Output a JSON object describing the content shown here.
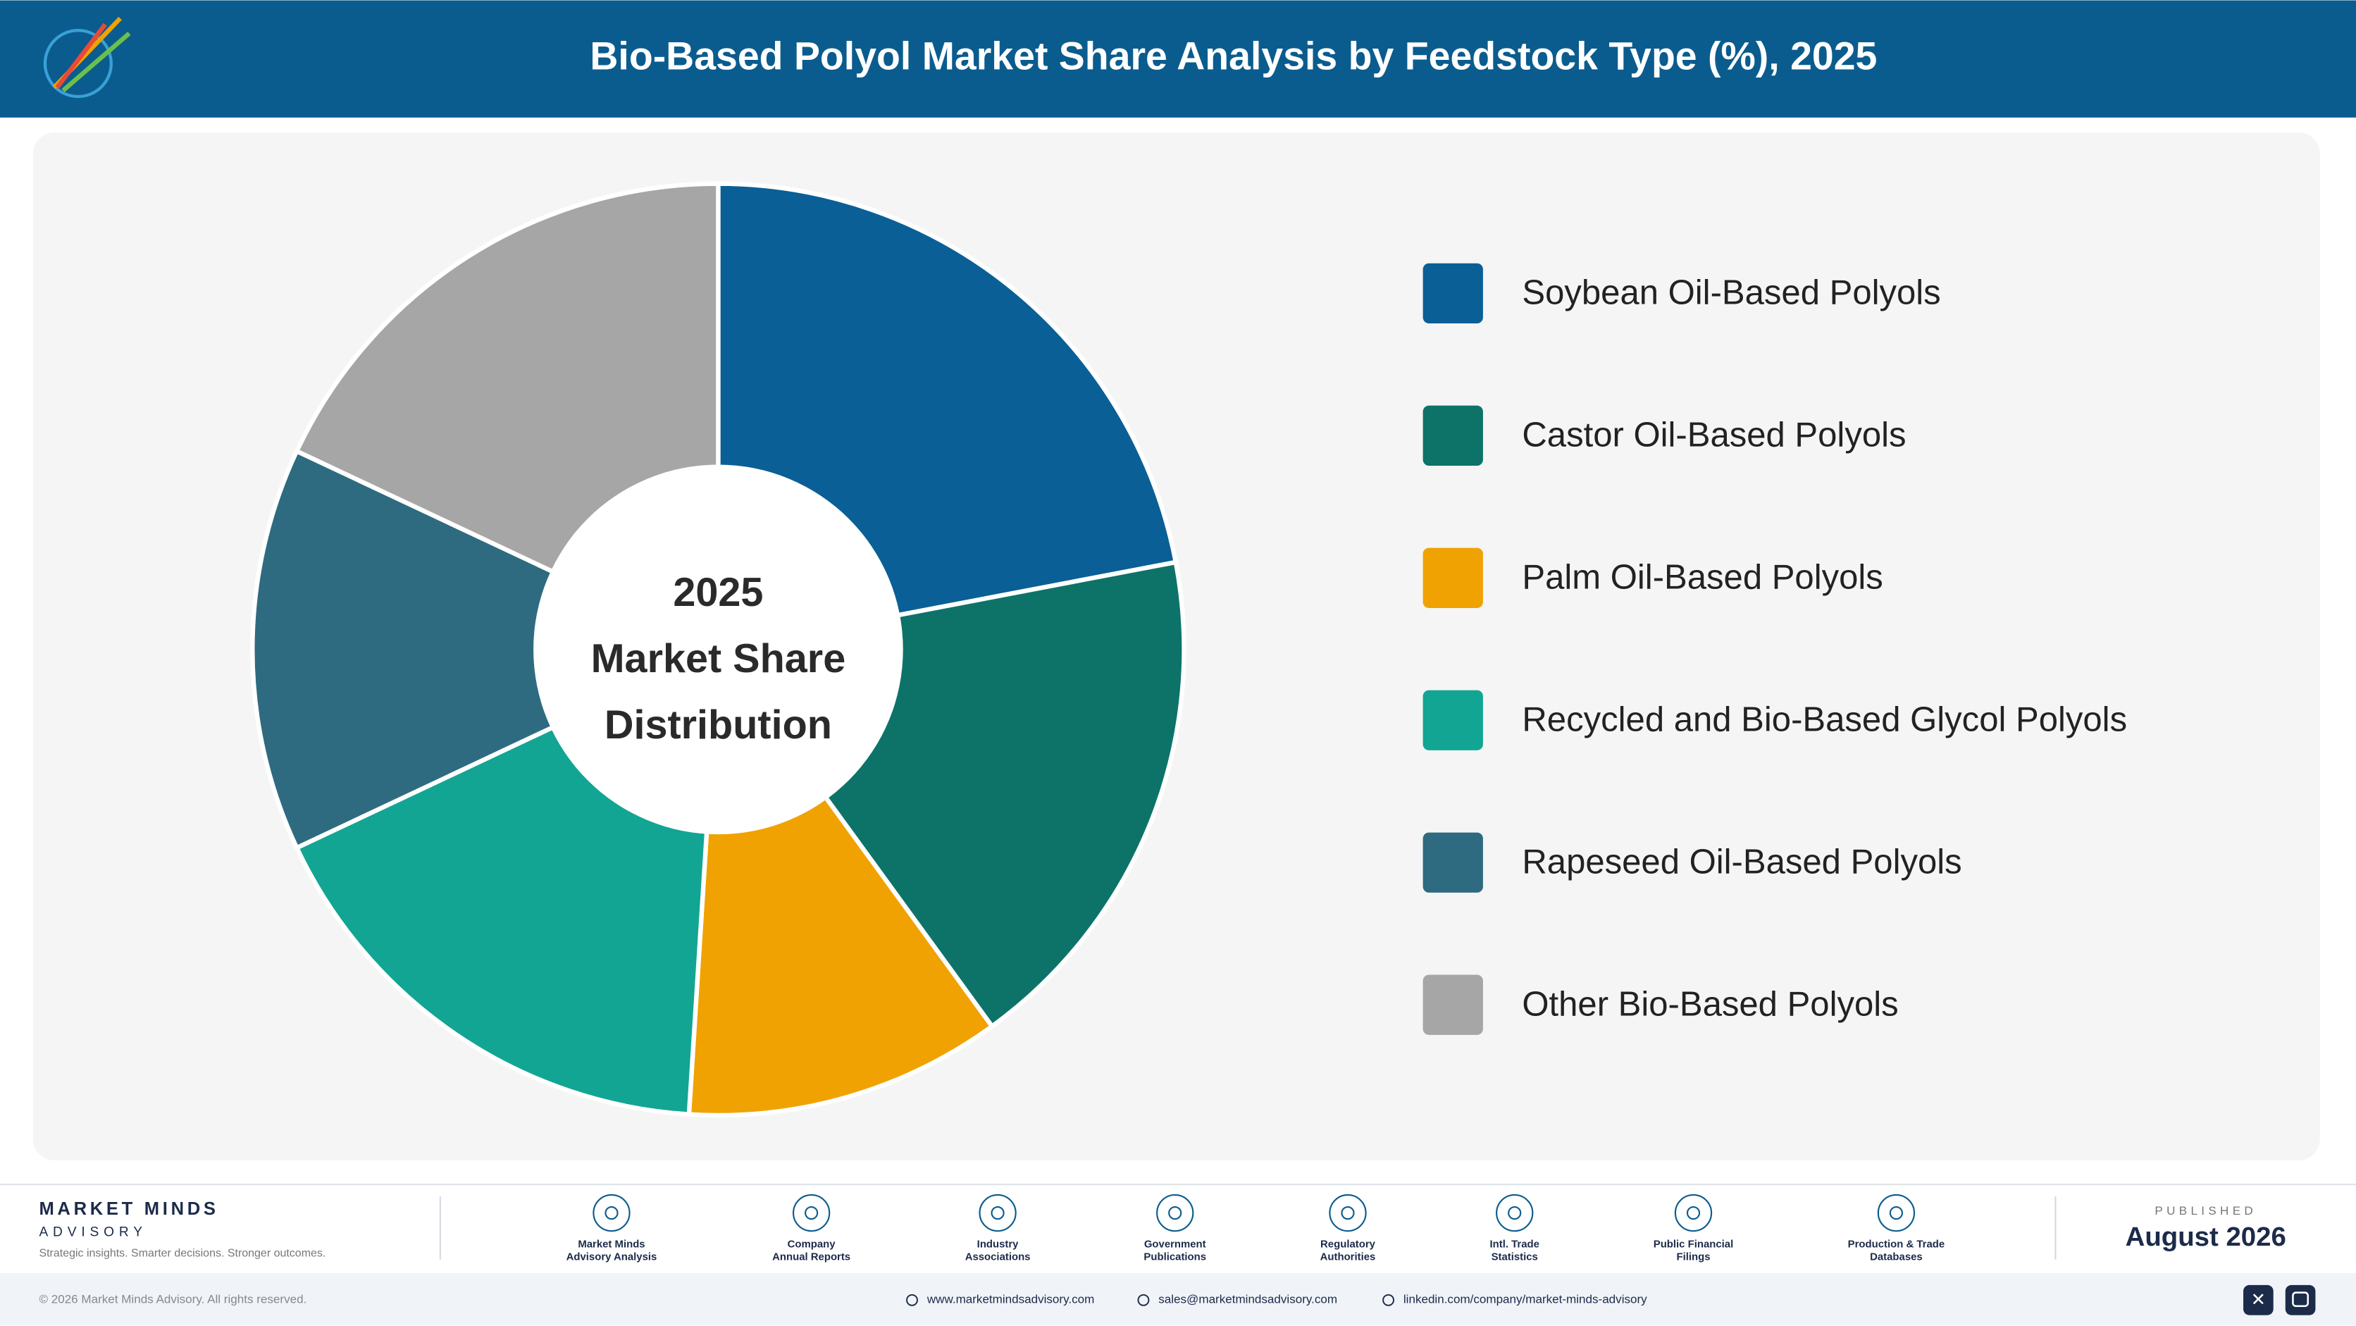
{
  "header": {
    "title": "Bio-Based Polyol Market Share Analysis by Feedstock Type (%), 2025"
  },
  "chart_data": {
    "type": "pie",
    "center_label": [
      "2025",
      "Market Share",
      "Distribution"
    ],
    "categories": [
      "Soybean Oil-Based Polyols",
      "Castor Oil-Based Polyols",
      "Palm Oil-Based Polyols",
      "Recycled and Bio-Based Glycol Polyols",
      "Rapeseed Oil-Based Polyols",
      "Other Bio-Based Polyols"
    ],
    "values": [
      22,
      18,
      11,
      17,
      14,
      18
    ],
    "colors": [
      "#0a5f96",
      "#0d7369",
      "#f0a202",
      "#12a594",
      "#2e6b80",
      "#a6a6a6"
    ]
  },
  "footer": {
    "brand": "MARKET MINDS",
    "brand_sub": "ADVISORY",
    "tagline": "Strategic insights. Smarter decisions. Stronger outcomes.",
    "sources": [
      [
        "Market Minds",
        "Advisory Analysis"
      ],
      [
        "Company",
        "Annual Reports"
      ],
      [
        "Industry",
        "Associations"
      ],
      [
        "Government",
        "Publications"
      ],
      [
        "Regulatory",
        "Authorities"
      ],
      [
        "Intl. Trade",
        "Statistics"
      ],
      [
        "Public Financial",
        "Filings"
      ],
      [
        "Production & Trade",
        "Databases"
      ]
    ],
    "published_label": "PUBLISHED",
    "published_date": "August 2026",
    "copyright": "© 2026 Market Minds Advisory. All rights reserved.",
    "website": "www.marketmindsadvisory.com",
    "email": "sales@marketmindsadvisory.com",
    "linkedin": "linkedin.com/company/market-minds-advisory"
  }
}
